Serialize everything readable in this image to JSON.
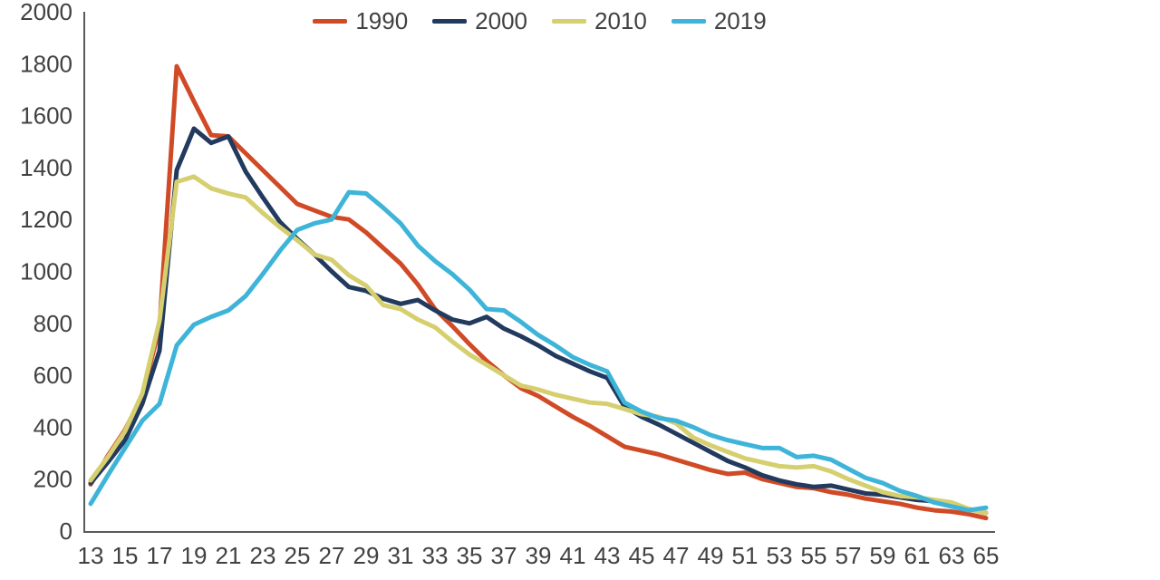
{
  "chart_data": {
    "type": "line",
    "title": "",
    "xlabel": "",
    "ylabel": "",
    "grid": false,
    "legend_position": "top-center",
    "ylim": [
      0,
      2000
    ],
    "xlim": [
      13,
      65
    ],
    "y_ticks": [
      0,
      200,
      400,
      600,
      800,
      1000,
      1200,
      1400,
      1600,
      1800,
      2000
    ],
    "x_ticks": [
      13,
      15,
      17,
      19,
      21,
      23,
      25,
      27,
      29,
      31,
      33,
      35,
      37,
      39,
      41,
      43,
      45,
      47,
      49,
      51,
      53,
      55,
      57,
      59,
      61,
      63,
      65
    ],
    "x": [
      13,
      14,
      15,
      16,
      17,
      18,
      19,
      20,
      21,
      22,
      23,
      24,
      25,
      26,
      27,
      28,
      29,
      30,
      31,
      32,
      33,
      34,
      35,
      36,
      37,
      38,
      39,
      40,
      41,
      42,
      43,
      44,
      45,
      46,
      47,
      48,
      49,
      50,
      51,
      52,
      53,
      54,
      55,
      56,
      57,
      58,
      59,
      60,
      61,
      62,
      63,
      64,
      65
    ],
    "series": [
      {
        "name": "1990",
        "color": "#d04a26",
        "values": [
          180,
          290,
          390,
          520,
          785,
          1790,
          1655,
          1525,
          1520,
          1455,
          1390,
          1325,
          1260,
          1235,
          1210,
          1200,
          1150,
          1090,
          1030,
          950,
          855,
          790,
          720,
          655,
          600,
          550,
          520,
          480,
          440,
          405,
          365,
          325,
          310,
          295,
          275,
          255,
          235,
          220,
          225,
          200,
          185,
          170,
          165,
          150,
          140,
          125,
          115,
          105,
          90,
          80,
          75,
          65,
          50
        ]
      },
      {
        "name": "2000",
        "color": "#223a5e",
        "values": [
          185,
          265,
          350,
          490,
          695,
          1390,
          1550,
          1495,
          1520,
          1385,
          1285,
          1190,
          1125,
          1065,
          1000,
          940,
          925,
          895,
          875,
          890,
          850,
          815,
          800,
          825,
          780,
          750,
          715,
          675,
          645,
          615,
          590,
          480,
          440,
          410,
          375,
          340,
          305,
          270,
          245,
          215,
          195,
          180,
          170,
          175,
          160,
          145,
          140,
          130,
          120,
          115,
          100,
          85,
          70
        ]
      },
      {
        "name": "2010",
        "color": "#d5cf6f",
        "values": [
          195,
          285,
          385,
          530,
          810,
          1345,
          1365,
          1320,
          1300,
          1285,
          1225,
          1170,
          1120,
          1065,
          1045,
          985,
          945,
          870,
          855,
          815,
          785,
          730,
          680,
          640,
          600,
          560,
          545,
          525,
          510,
          495,
          490,
          470,
          450,
          440,
          415,
          360,
          330,
          305,
          280,
          265,
          250,
          245,
          250,
          230,
          200,
          175,
          150,
          135,
          130,
          120,
          110,
          85,
          70
        ]
      },
      {
        "name": "2019",
        "color": "#3eb4d8",
        "values": [
          105,
          215,
          320,
          425,
          490,
          715,
          795,
          825,
          850,
          905,
          990,
          1080,
          1160,
          1185,
          1200,
          1305,
          1300,
          1245,
          1185,
          1100,
          1040,
          990,
          930,
          855,
          850,
          805,
          755,
          715,
          670,
          640,
          615,
          495,
          460,
          435,
          425,
          400,
          370,
          350,
          335,
          320,
          320,
          285,
          290,
          275,
          240,
          205,
          185,
          155,
          135,
          110,
          95,
          80,
          90
        ]
      }
    ]
  },
  "colors": {
    "axis": "#58595b",
    "tick_text": "#414042",
    "background": "#ffffff"
  }
}
